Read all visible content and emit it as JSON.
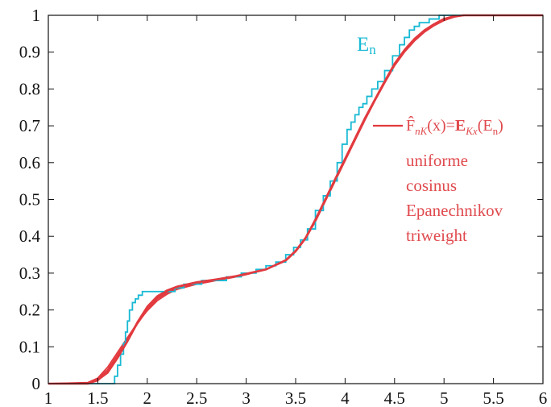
{
  "chart_data": {
    "type": "line",
    "title": "",
    "xlabel": "",
    "ylabel": "",
    "xlim": [
      1,
      6
    ],
    "ylim": [
      0,
      1
    ],
    "xticks": [
      "1",
      "1.5",
      "2",
      "2.5",
      "3",
      "3.5",
      "4",
      "4.5",
      "5",
      "5.5",
      "6"
    ],
    "yticks": [
      "0",
      "0.1",
      "0.2",
      "0.3",
      "0.4",
      "0.5",
      "0.6",
      "0.7",
      "0.8",
      "0.9",
      "1"
    ],
    "grid": false,
    "empirical_label_main": "E",
    "empirical_label_sub": "n",
    "empirical_color": "#17b9d4",
    "smooth_color": "#e23a3f",
    "smooth_label_color": "#e04a4e",
    "legend_formula": {
      "F": "F̂",
      "F_sub": "nK",
      "middle": "(x)=",
      "E": "E",
      "E_sub": "Kx",
      "tail_open": "(E",
      "tail_sub": "n",
      "tail_close": ")"
    },
    "series": [
      {
        "name": "E",
        "kind": "step",
        "x": [
          1.0,
          1.67,
          1.7,
          1.73,
          1.76,
          1.78,
          1.8,
          1.82,
          1.85,
          1.88,
          1.91,
          1.95,
          2.05,
          2.28,
          2.37,
          2.55,
          2.8,
          2.95,
          3.1,
          3.2,
          3.3,
          3.4,
          3.48,
          3.55,
          3.62,
          3.7,
          3.78,
          3.85,
          3.92,
          3.97,
          4.02,
          4.06,
          4.1,
          4.14,
          4.18,
          4.22,
          4.27,
          4.33,
          4.4,
          4.48,
          4.55,
          4.6,
          4.65,
          4.7,
          4.75,
          4.85,
          4.95,
          5.1,
          6.0
        ],
        "y": [
          0.0,
          0.02,
          0.05,
          0.08,
          0.11,
          0.14,
          0.17,
          0.2,
          0.22,
          0.23,
          0.24,
          0.25,
          0.25,
          0.26,
          0.27,
          0.28,
          0.29,
          0.3,
          0.31,
          0.32,
          0.33,
          0.35,
          0.37,
          0.39,
          0.42,
          0.47,
          0.51,
          0.55,
          0.6,
          0.65,
          0.69,
          0.71,
          0.73,
          0.75,
          0.76,
          0.78,
          0.8,
          0.82,
          0.85,
          0.89,
          0.92,
          0.94,
          0.96,
          0.97,
          0.98,
          0.99,
          1.0,
          1.0,
          1.0
        ]
      },
      {
        "name": "uniforme",
        "kind": "smooth",
        "x": [
          1.0,
          1.4,
          1.5,
          1.6,
          1.7,
          1.8,
          1.9,
          2.0,
          2.1,
          2.2,
          2.3,
          2.5,
          2.7,
          2.9,
          3.0,
          3.2,
          3.4,
          3.5,
          3.6,
          3.7,
          3.8,
          3.9,
          4.0,
          4.1,
          4.2,
          4.3,
          4.4,
          4.5,
          4.6,
          4.7,
          4.8,
          4.9,
          5.0,
          5.1,
          5.2,
          6.0
        ],
        "y": [
          0.0,
          0.0,
          0.01,
          0.03,
          0.07,
          0.115,
          0.165,
          0.205,
          0.235,
          0.252,
          0.263,
          0.275,
          0.283,
          0.292,
          0.298,
          0.31,
          0.335,
          0.36,
          0.395,
          0.445,
          0.5,
          0.555,
          0.61,
          0.665,
          0.72,
          0.77,
          0.82,
          0.868,
          0.905,
          0.935,
          0.958,
          0.976,
          0.99,
          0.997,
          1.0,
          1.0
        ]
      },
      {
        "name": "cosinus",
        "kind": "smooth",
        "x": [
          1.0,
          1.4,
          1.5,
          1.6,
          1.7,
          1.8,
          1.9,
          2.0,
          2.1,
          2.2,
          2.3,
          2.5,
          2.7,
          2.9,
          3.0,
          3.2,
          3.4,
          3.5,
          3.6,
          3.7,
          3.8,
          3.9,
          4.0,
          4.1,
          4.2,
          4.3,
          4.4,
          4.5,
          4.6,
          4.7,
          4.8,
          4.9,
          5.0,
          5.1,
          5.2,
          6.0
        ],
        "y": [
          0.0,
          0.003,
          0.015,
          0.045,
          0.085,
          0.125,
          0.165,
          0.198,
          0.225,
          0.243,
          0.256,
          0.27,
          0.28,
          0.29,
          0.296,
          0.31,
          0.333,
          0.358,
          0.393,
          0.44,
          0.495,
          0.55,
          0.605,
          0.66,
          0.715,
          0.767,
          0.816,
          0.863,
          0.9,
          0.93,
          0.954,
          0.972,
          0.986,
          0.995,
          1.0,
          1.0
        ]
      },
      {
        "name": "Epanechnikov",
        "kind": "smooth",
        "x": [
          1.0,
          1.4,
          1.5,
          1.6,
          1.7,
          1.8,
          1.9,
          2.0,
          2.1,
          2.2,
          2.3,
          2.5,
          2.7,
          2.9,
          3.0,
          3.2,
          3.4,
          3.5,
          3.6,
          3.7,
          3.8,
          3.9,
          4.0,
          4.1,
          4.2,
          4.3,
          4.4,
          4.5,
          4.6,
          4.7,
          4.8,
          4.9,
          5.0,
          5.1,
          5.2,
          6.0
        ],
        "y": [
          0.0,
          0.001,
          0.012,
          0.038,
          0.078,
          0.12,
          0.162,
          0.2,
          0.23,
          0.247,
          0.259,
          0.272,
          0.281,
          0.291,
          0.297,
          0.31,
          0.334,
          0.359,
          0.394,
          0.442,
          0.497,
          0.552,
          0.607,
          0.662,
          0.717,
          0.768,
          0.818,
          0.865,
          0.902,
          0.932,
          0.956,
          0.974,
          0.988,
          0.996,
          1.0,
          1.0
        ]
      },
      {
        "name": "triweight",
        "kind": "smooth",
        "x": [
          1.0,
          1.4,
          1.5,
          1.6,
          1.7,
          1.8,
          1.9,
          2.0,
          2.1,
          2.2,
          2.3,
          2.5,
          2.7,
          2.9,
          3.0,
          3.2,
          3.4,
          3.5,
          3.6,
          3.7,
          3.8,
          3.9,
          4.0,
          4.1,
          4.2,
          4.3,
          4.4,
          4.5,
          4.6,
          4.7,
          4.8,
          4.9,
          5.0,
          5.1,
          5.2,
          6.0
        ],
        "y": [
          0.0,
          0.0,
          0.008,
          0.033,
          0.075,
          0.118,
          0.168,
          0.21,
          0.238,
          0.254,
          0.264,
          0.276,
          0.283,
          0.292,
          0.298,
          0.31,
          0.336,
          0.362,
          0.397,
          0.447,
          0.502,
          0.557,
          0.612,
          0.667,
          0.722,
          0.772,
          0.822,
          0.87,
          0.907,
          0.937,
          0.96,
          0.977,
          0.991,
          0.998,
          1.0,
          1.0
        ]
      }
    ]
  }
}
